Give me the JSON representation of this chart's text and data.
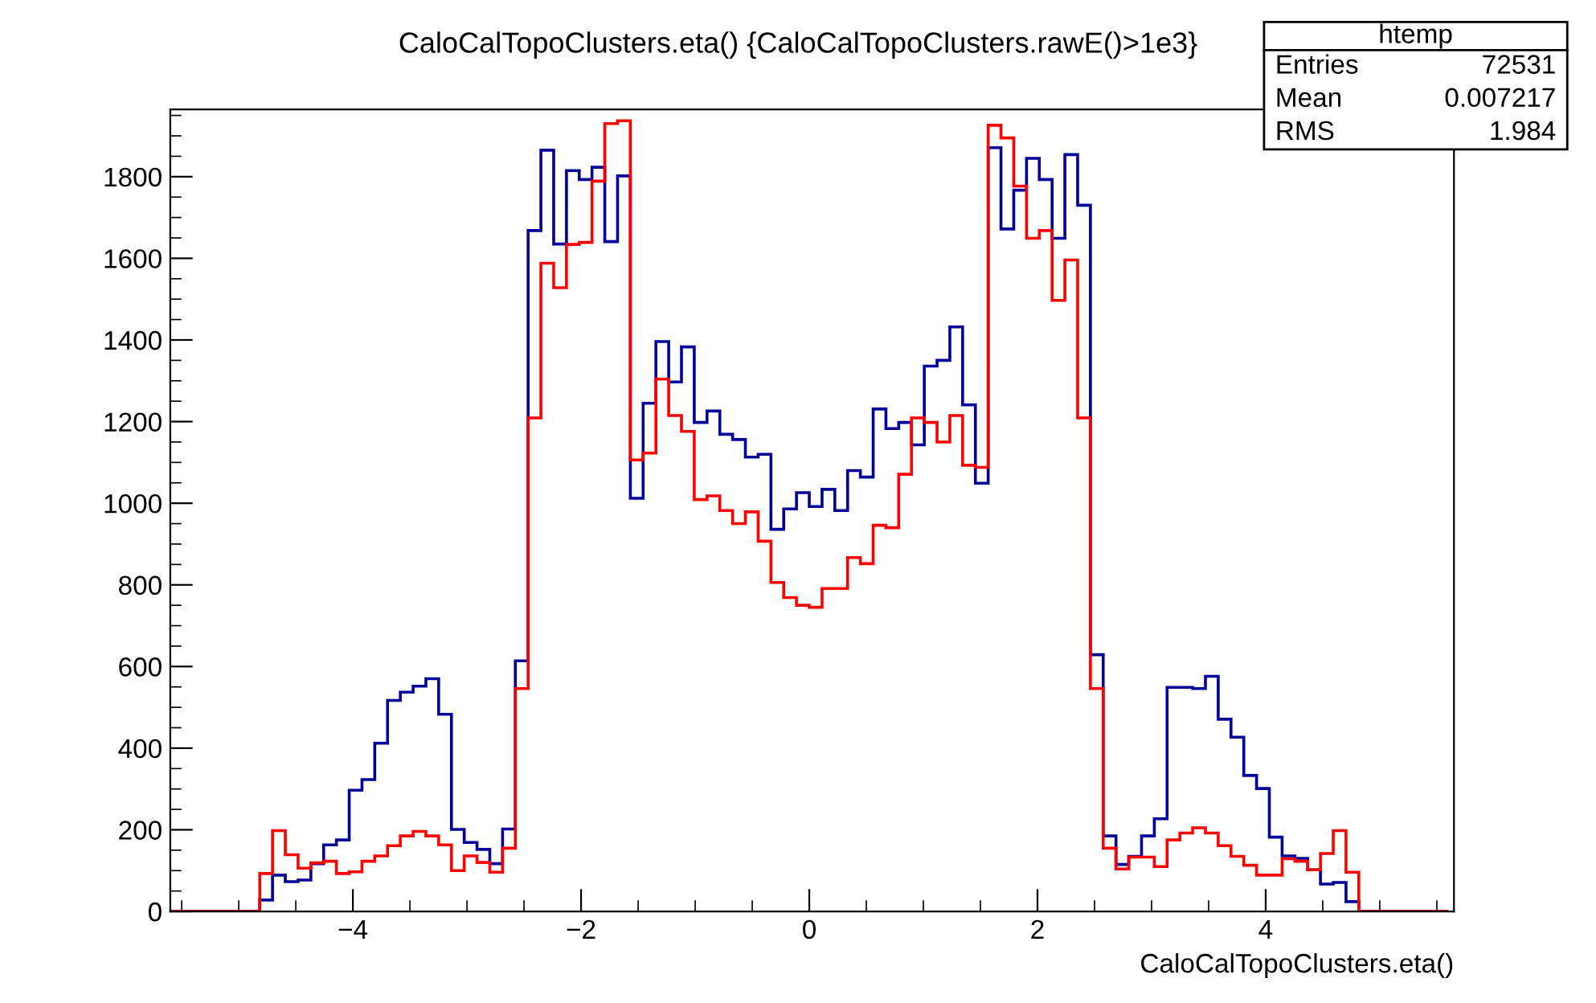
{
  "chart_data": {
    "type": "histogram",
    "title": "CaloCalTopoClusters.eta() {CaloCalTopoClusters.rawE()>1e3}",
    "xlabel": "CaloCalTopoClusters.eta()",
    "bins": [
      -5.6,
      -5.488,
      -5.376,
      -5.264,
      -5.152,
      -5.04,
      -4.928,
      -4.816,
      -4.704,
      -4.592,
      -4.48,
      -4.368,
      -4.256,
      -4.144,
      -4.032,
      -3.92,
      -3.808,
      -3.696,
      -3.584,
      -3.472,
      -3.36,
      -3.248,
      -3.136,
      -3.024,
      -2.912,
      -2.8,
      -2.688,
      -2.576,
      -2.464,
      -2.352,
      -2.24,
      -2.128,
      -2.016,
      -1.904,
      -1.792,
      -1.68,
      -1.568,
      -1.456,
      -1.344,
      -1.232,
      -1.12,
      -1.008,
      -0.896,
      -0.784,
      -0.672,
      -0.56,
      -0.448,
      -0.336,
      -0.224,
      -0.112,
      0,
      0.112,
      0.224,
      0.336,
      0.448,
      0.56,
      0.672,
      0.784,
      0.896,
      1.008,
      1.12,
      1.232,
      1.344,
      1.456,
      1.568,
      1.68,
      1.792,
      1.904,
      2.016,
      2.128,
      2.24,
      2.352,
      2.464,
      2.576,
      2.688,
      2.8,
      2.912,
      3.024,
      3.136,
      3.248,
      3.36,
      3.472,
      3.584,
      3.696,
      3.808,
      3.92,
      4.032,
      4.144,
      4.256,
      4.368,
      4.48,
      4.592,
      4.704,
      4.816,
      4.928,
      5.04,
      5.152,
      5.264,
      5.376,
      5.488,
      5.6
    ],
    "series": [
      {
        "color": "#000099",
        "values": [
          0,
          0,
          0,
          0,
          0,
          0,
          0,
          28,
          89,
          73,
          77,
          117,
          163,
          175,
          297,
          323,
          412,
          517,
          537,
          552,
          570,
          483,
          201,
          169,
          152,
          117,
          202,
          614,
          1668,
          1865,
          1635,
          1815,
          1793,
          1823,
          1641,
          1802,
          1012,
          1245,
          1396,
          1297,
          1383,
          1198,
          1226,
          1169,
          1156,
          1113,
          1120,
          936,
          986,
          1026,
          992,
          1034,
          982,
          1080,
          1064,
          1231,
          1183,
          1198,
          1143,
          1336,
          1350,
          1432,
          1241,
          1049,
          1871,
          1672,
          1767,
          1845,
          1793,
          1649,
          1854,
          1730,
          629,
          185,
          115,
          135,
          185,
          227,
          549,
          549,
          546,
          576,
          471,
          427,
          333,
          301,
          182,
          136,
          130,
          102,
          67,
          71,
          24,
          0,
          0,
          0,
          0,
          0,
          0,
          0
        ]
      },
      {
        "color": "#ff0000",
        "values": [
          0,
          0,
          0,
          0,
          0,
          0,
          0,
          93,
          198,
          139,
          106,
          119,
          123,
          93,
          97,
          123,
          136,
          161,
          185,
          196,
          185,
          163,
          100,
          136,
          120,
          96,
          155,
          546,
          1209,
          1588,
          1528,
          1634,
          1639,
          1789,
          1930,
          1937,
          1106,
          1123,
          1304,
          1215,
          1176,
          1009,
          1018,
          982,
          950,
          979,
          907,
          806,
          769,
          750,
          745,
          791,
          791,
          867,
          852,
          946,
          940,
          1071,
          1209,
          1198,
          1150,
          1215,
          1093,
          1088,
          1926,
          1895,
          1777,
          1649,
          1668,
          1497,
          1596,
          1209,
          546,
          155,
          104,
          133,
          133,
          110,
          175,
          192,
          205,
          192,
          161,
          135,
          113,
          89,
          89,
          129,
          123,
          102,
          142,
          198,
          96,
          0,
          0,
          0,
          0,
          0,
          0,
          0
        ]
      }
    ],
    "xlim": [
      -5.6,
      5.65
    ],
    "ylim": [
      0,
      1965
    ],
    "xticks": [
      {
        "value": -4,
        "label": "−4"
      },
      {
        "value": -2,
        "label": "−2"
      },
      0,
      2,
      4
    ],
    "yticks": [
      0,
      200,
      400,
      600,
      800,
      1000,
      1200,
      1400,
      1600,
      1800
    ],
    "grid": false,
    "legend": false,
    "annotations": [
      "htemp",
      "Entries",
      "72531",
      "Mean",
      "0.007217",
      "RMS",
      "1.984"
    ]
  }
}
